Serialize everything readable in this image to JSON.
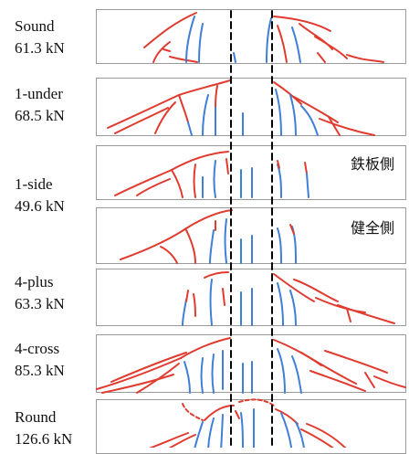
{
  "specimens": [
    {
      "name": "Sound",
      "load": "61.3 kN"
    },
    {
      "name": "1-under",
      "load": "68.5 kN"
    },
    {
      "name": "1-side",
      "load": "49.6 kN"
    },
    {
      "name": "4-plus",
      "load": "63.3 kN"
    },
    {
      "name": "4-cross",
      "load": "85.3 kN"
    },
    {
      "name": "Round",
      "load": "126.6 kN"
    }
  ],
  "side_labels": {
    "steel_side": "鉄板側",
    "sound_side": "健全側"
  },
  "colors": {
    "crack_red": "#e03b2f",
    "crack_blue": "#3f7fd6",
    "guide_line": "#000000",
    "frame": "#9a9a9a"
  }
}
